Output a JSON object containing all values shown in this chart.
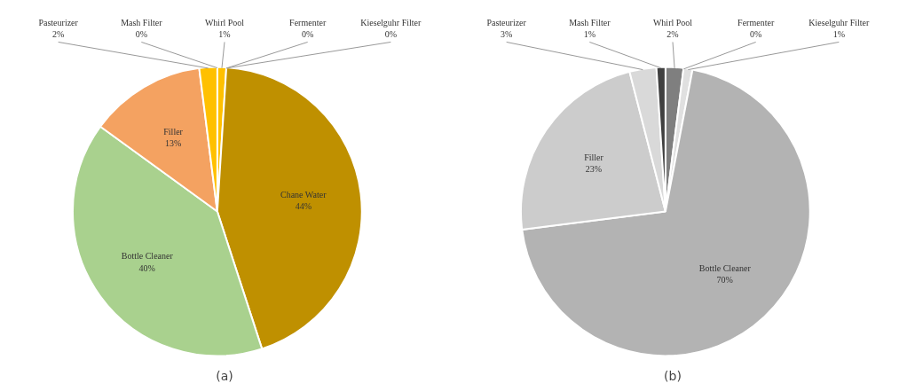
{
  "chart_data": [
    {
      "type": "pie",
      "title": "(a)",
      "categories": [
        "Whirl Pool",
        "Fermenter",
        "Kieselguhr Filter",
        "Chane Water",
        "Bottle Cleaner",
        "Filler",
        "Pasteurizer",
        "Mash Filter"
      ],
      "values": [
        1,
        0,
        0,
        44,
        40,
        13,
        2,
        0
      ],
      "value_labels": [
        "1%",
        "0%",
        "0%",
        "44%",
        "40%",
        "13%",
        "2%",
        "0%"
      ],
      "colors": [
        "#ffc000",
        "#ffe699",
        "#fff2cc",
        "#bf9000",
        "#a9d18e",
        "#f4a261",
        "#ffc000",
        "#ffd966"
      ]
    },
    {
      "type": "pie",
      "title": "(b)",
      "categories": [
        "Whirl Pool",
        "Fermenter",
        "Kieselguhr Filter",
        "Bottle Cleaner",
        "Filler",
        "Pasteurizer",
        "Mash Filter"
      ],
      "values": [
        2,
        0,
        1,
        70,
        23,
        3,
        1
      ],
      "value_labels": [
        "2%",
        "0%",
        "1%",
        "70%",
        "23%",
        "3%",
        "1%"
      ],
      "colors": [
        "#7f7f7f",
        "#a6a6a6",
        "#e0e0e0",
        "#b3b3b3",
        "#cccccc",
        "#d9d9d9",
        "#404040"
      ]
    }
  ]
}
